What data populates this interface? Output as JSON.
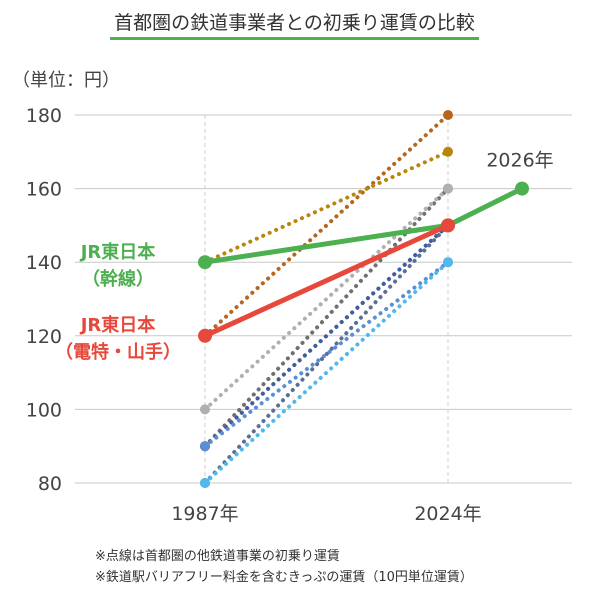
{
  "title": "首都圏の鉄道事業者との初乗り運賃の比較",
  "unit_label": "（単位：円）",
  "notes": [
    "※点線は首都圏の他鉄道事業の初乗り運賃",
    "※鉄道駅バリアフリー料金を含むきっぷの運賃（10円単位運賃）"
  ],
  "chart_data": {
    "type": "line",
    "x": [
      "1987年",
      "2024年",
      "2026年"
    ],
    "ylim": [
      80,
      180
    ],
    "yticks": [
      80,
      100,
      120,
      140,
      160,
      180
    ],
    "grid": true,
    "series": [
      {
        "name": "JR東日本（幹線）",
        "label_lines": [
          "JR東日本",
          "（幹線）"
        ],
        "style": "solid",
        "color": "#4caf50",
        "values": [
          140,
          150,
          160
        ]
      },
      {
        "name": "JR東日本（電特・山手）",
        "label_lines": [
          "JR東日本",
          "（電特・山手）"
        ],
        "style": "solid",
        "color": "#e8483c",
        "values": [
          120,
          150,
          null
        ]
      },
      {
        "style": "dotted",
        "color": "#b5651d",
        "values": [
          120,
          180,
          null
        ]
      },
      {
        "style": "dotted",
        "color": "#b8860b",
        "values": [
          140,
          170,
          null
        ]
      },
      {
        "style": "dotted",
        "color": "#707070",
        "values": [
          90,
          160,
          null
        ]
      },
      {
        "style": "dotted",
        "color": "#b0b0b0",
        "values": [
          100,
          160,
          null
        ]
      },
      {
        "style": "dotted",
        "color": "#f08c3c",
        "values": [
          90,
          150,
          null
        ]
      },
      {
        "style": "dotted",
        "color": "#3b5ea8",
        "values": [
          90,
          150,
          null
        ]
      },
      {
        "style": "dotted",
        "color": "#5b6f95",
        "values": [
          80,
          150,
          null
        ]
      },
      {
        "style": "dotted",
        "color": "#5b8ed6",
        "values": [
          90,
          140,
          null
        ]
      },
      {
        "style": "dotted",
        "color": "#4fb8ec",
        "values": [
          80,
          140,
          null
        ]
      }
    ],
    "annotations": [
      "2026年"
    ]
  }
}
